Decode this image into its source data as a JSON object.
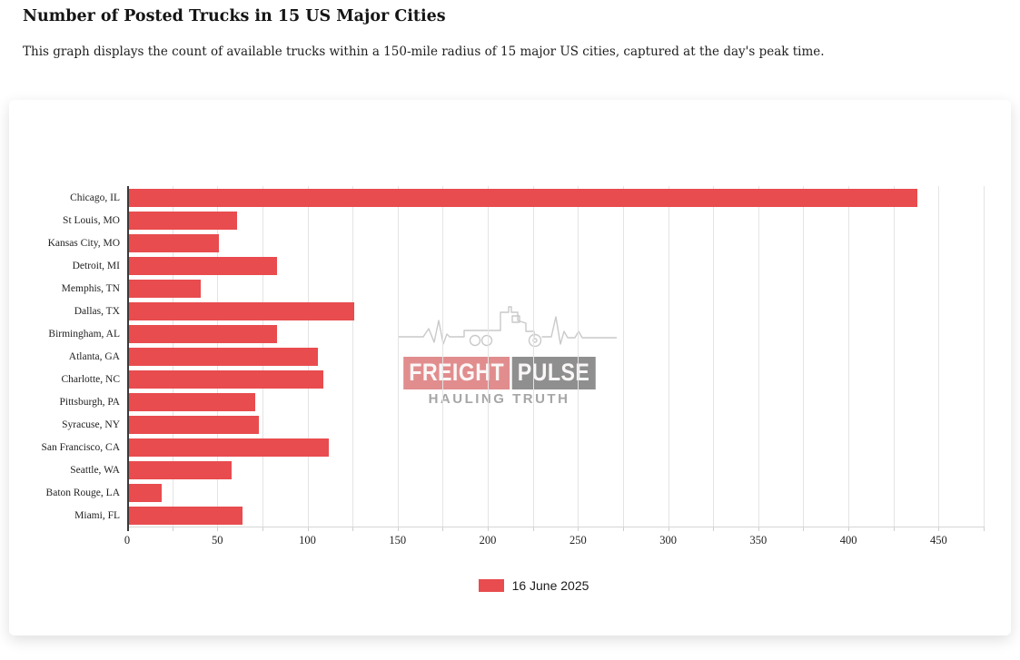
{
  "page": {
    "title": "Number of Posted Trucks in 15 US Major Cities",
    "subtitle": "This graph displays the count of available trucks within a 150-mile radius of 15 major US cities, captured at the day's peak time."
  },
  "watermark": {
    "brand_primary": "FREIGHT",
    "brand_secondary": "PULSE",
    "tagline": "HAULING TRUTH"
  },
  "chart_data": {
    "type": "bar",
    "orientation": "horizontal",
    "title": "Number of Posted Trucks in 15 US Major Cities",
    "categories": [
      "Chicago, IL",
      "St Louis, MO",
      "Kansas City, MO",
      "Detroit, MI",
      "Memphis, TN",
      "Dallas, TX",
      "Birmingham, AL",
      "Atlanta, GA",
      "Charlotte, NC",
      "Pittsburgh, PA",
      "Syracuse, NY",
      "San Francisco, CA",
      "Seattle, WA",
      "Baton Rouge, LA",
      "Miami, FL"
    ],
    "series": [
      {
        "name": "16 June 2025",
        "color": "#e84c4f",
        "values": [
          438,
          61,
          51,
          83,
          41,
          126,
          83,
          106,
          109,
          71,
          73,
          112,
          58,
          19,
          64
        ]
      }
    ],
    "xlabel": "",
    "ylabel": "",
    "xlim": [
      0,
      475
    ],
    "x_ticks": [
      0,
      50,
      100,
      150,
      200,
      250,
      300,
      350,
      400,
      450
    ],
    "x_grid_step": 25,
    "grid": true,
    "legend_position": "bottom",
    "axis_color": "#3a3a3a",
    "gridline_color": "#e4e4e4"
  }
}
